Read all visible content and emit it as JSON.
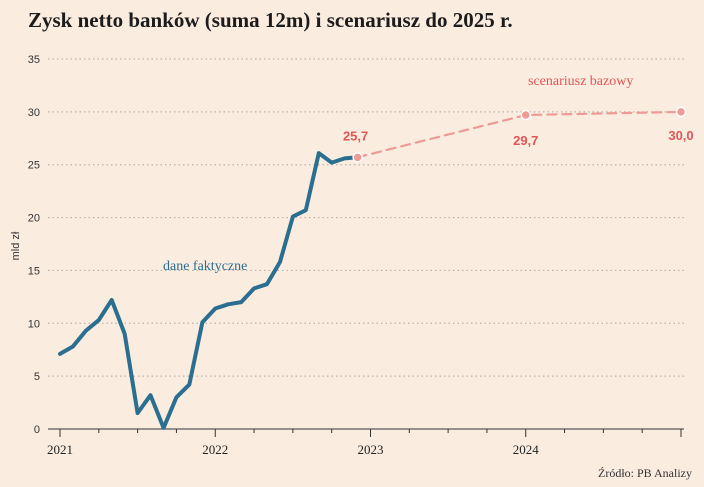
{
  "title": "Zysk netto banków (suma 12m) i scenariusz do 2025 r.",
  "source": "Źródło: PB Analizy",
  "colors": {
    "actual": "#2a6f8f",
    "scenario": "#ee9a96",
    "annotation": "#e05555",
    "background": "#fbece0",
    "grid": "#b9b4b0"
  },
  "chart_data": {
    "type": "line",
    "title": "Zysk netto banków (suma 12m) i scenariusz do 2025 r.",
    "xlabel": "",
    "ylabel": "mld zł",
    "ylim": [
      0,
      35
    ],
    "yticks": [
      0,
      5,
      10,
      15,
      20,
      25,
      30,
      35
    ],
    "xlim": [
      2021,
      2025
    ],
    "xticks": [
      2021,
      2022,
      2023,
      2024
    ],
    "grid": "horizontal dotted",
    "series": [
      {
        "name": "dane faktyczne",
        "style": "solid",
        "x": [
          2021.0,
          2021.083,
          2021.167,
          2021.25,
          2021.333,
          2021.417,
          2021.5,
          2021.583,
          2021.667,
          2021.75,
          2021.833,
          2021.917,
          2022.0,
          2022.083,
          2022.167,
          2022.25,
          2022.333,
          2022.417,
          2022.5,
          2022.583,
          2022.667,
          2022.75,
          2022.833,
          2022.917
        ],
        "values": [
          7.1,
          7.8,
          9.3,
          10.3,
          12.2,
          9.0,
          1.5,
          3.2,
          0.1,
          3.0,
          4.2,
          10.1,
          11.4,
          11.8,
          12.0,
          13.3,
          13.7,
          15.8,
          20.1,
          20.7,
          26.1,
          25.2,
          25.6,
          25.7
        ]
      },
      {
        "name": "scenariusz bazowy",
        "style": "dashed",
        "x": [
          2022.917,
          2024.0,
          2025.0
        ],
        "values": [
          25.7,
          29.7,
          30.0
        ]
      }
    ],
    "annotations": [
      "25,7",
      "29,7",
      "30,0"
    ]
  }
}
